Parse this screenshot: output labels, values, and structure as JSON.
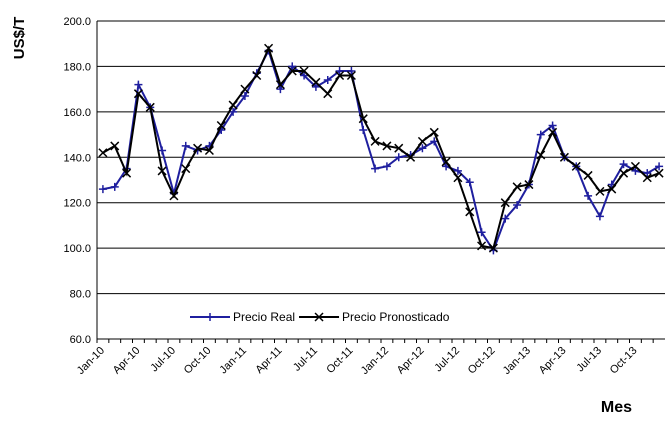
{
  "chart_data": {
    "type": "line",
    "y_label": "US$/T",
    "x_label": "Mes",
    "categories": [
      "Jan-10",
      null,
      null,
      "Apr-10",
      null,
      null,
      "Jul-10",
      null,
      null,
      "Oct-10",
      null,
      null,
      "Jan-11",
      null,
      null,
      "Apr-11",
      null,
      null,
      "Jul-11",
      null,
      null,
      "Oct-11",
      null,
      null,
      "Jan-12",
      null,
      null,
      "Apr-12",
      null,
      null,
      "Jul-12",
      null,
      null,
      "Oct-12",
      null,
      null,
      "Jan-13",
      null,
      null,
      "Apr-13",
      null,
      null,
      "Jul-13",
      null,
      null,
      "Oct-13",
      null,
      null
    ],
    "series": [
      {
        "name": "Precio Real",
        "color": "#1f1f9f",
        "marker": "plus",
        "values": [
          126,
          127,
          135,
          172,
          162,
          143,
          124,
          145,
          143,
          145,
          152,
          160,
          167,
          177,
          187,
          170,
          180,
          176,
          171,
          174,
          178,
          178,
          152,
          135,
          136,
          140,
          141,
          144,
          147,
          136,
          134,
          129,
          107,
          99,
          113,
          119,
          128,
          150,
          154,
          140,
          136,
          123,
          114,
          128,
          137,
          134,
          133,
          136
        ]
      },
      {
        "name": "Precio Pronosticado",
        "color": "#000000",
        "marker": "cross",
        "values": [
          142,
          145,
          133,
          168,
          162,
          134,
          123,
          135,
          144,
          143,
          154,
          163,
          170,
          176,
          188,
          172,
          178,
          178,
          173,
          168,
          176,
          176,
          157,
          147,
          145,
          144,
          140,
          147,
          151,
          138,
          131,
          116,
          101,
          100,
          120,
          127,
          128,
          141,
          151,
          140,
          136,
          132,
          125,
          126,
          133,
          136,
          131,
          133
        ]
      }
    ],
    "ylim": [
      60,
      200
    ],
    "yticks": [
      {
        "value": 60,
        "label": "60.0"
      },
      {
        "value": 80,
        "label": "80.0"
      },
      {
        "value": 100,
        "label": "100.0"
      },
      {
        "value": 120,
        "label": "120.0"
      },
      {
        "value": 140,
        "label": "140.0"
      },
      {
        "value": 160,
        "label": "160.0"
      },
      {
        "value": 180,
        "label": "180.0"
      },
      {
        "value": 200,
        "label": "200.0"
      }
    ],
    "grid": true,
    "legend": "lower center"
  }
}
